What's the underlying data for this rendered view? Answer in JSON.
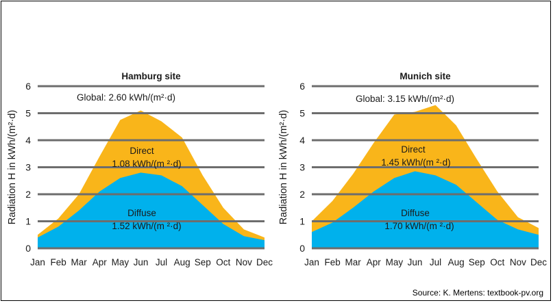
{
  "colors": {
    "direct": "#F9B51A",
    "diffuse": "#00B1EC",
    "grid": "#6d6d6d",
    "text": "#1a1a1a"
  },
  "source_text": "Source: K. Mertens: textbook-pv.org",
  "chart_data": [
    {
      "type": "area",
      "title": "Hamburg site",
      "ylabel": "Radiation H in kWh/(m²·d)",
      "ylim": [
        0,
        6
      ],
      "yticks": [
        "0",
        "1",
        "2",
        "3",
        "4",
        "5",
        "6"
      ],
      "categories": [
        "Jan",
        "Feb",
        "Mar",
        "Apr",
        "May",
        "Jun",
        "Jul",
        "Aug",
        "Sep",
        "Oct",
        "Nov",
        "Dec"
      ],
      "grid": true,
      "series": [
        {
          "name": "Diffuse",
          "values": [
            0.4,
            0.8,
            1.4,
            2.1,
            2.6,
            2.8,
            2.7,
            2.3,
            1.6,
            0.9,
            0.45,
            0.3
          ]
        },
        {
          "name": "Global",
          "values": [
            0.5,
            1.1,
            2.0,
            3.4,
            4.75,
            5.1,
            4.7,
            4.1,
            2.7,
            1.5,
            0.7,
            0.4
          ]
        }
      ],
      "annotations": {
        "global": "Global: 2.60 kWh/(m²·d)",
        "direct_label": "Direct",
        "direct_value": "1.08 kWh/(m ²·d)",
        "diffuse_label": "Diffuse",
        "diffuse_value": "1.52 kWh/(m ²·d)"
      }
    },
    {
      "type": "area",
      "title": "Munich site",
      "ylabel": "Radiation H in kWh/(m²·d)",
      "ylim": [
        0,
        6
      ],
      "yticks": [
        "0",
        "1",
        "2",
        "3",
        "4",
        "5",
        "6"
      ],
      "categories": [
        "Jan",
        "Feb",
        "Mar",
        "Apr",
        "May",
        "Jun",
        "Jul",
        "Aug",
        "Sep",
        "Oct",
        "Nov",
        "Dec"
      ],
      "grid": true,
      "series": [
        {
          "name": "Diffuse",
          "values": [
            0.6,
            0.95,
            1.5,
            2.1,
            2.6,
            2.85,
            2.7,
            2.35,
            1.7,
            1.05,
            0.7,
            0.5
          ]
        },
        {
          "name": "Global",
          "values": [
            1.0,
            1.75,
            2.75,
            3.9,
            4.95,
            5.05,
            5.3,
            4.55,
            3.3,
            2.1,
            1.15,
            0.75
          ]
        }
      ],
      "annotations": {
        "global": "Global: 3.15 kWh/(m²·d)",
        "direct_label": "Direct",
        "direct_value": "1.45 kWh/(m ²·d)",
        "diffuse_label": "Diffuse",
        "diffuse_value": "1.70 kWh/(m ²·d)"
      }
    }
  ]
}
